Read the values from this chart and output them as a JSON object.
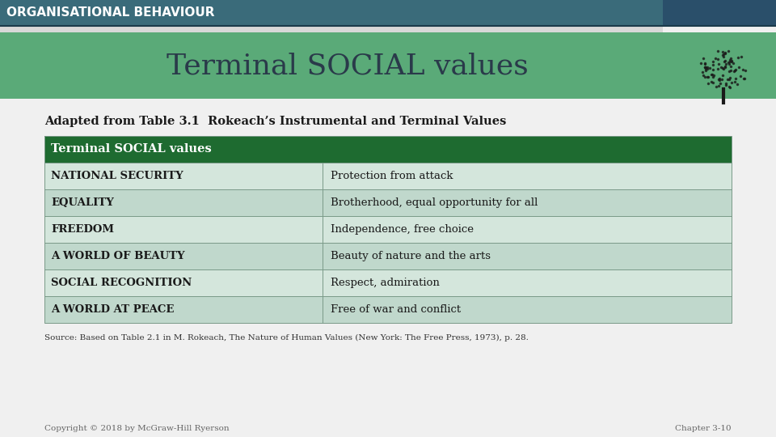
{
  "slide_title": "Terminal SOCIAL values",
  "header_text": "ORGANISATIONAL BEHAVIOUR",
  "subtitle": "Adapted from Table 3.1  Rokeach’s Instrumental and Terminal Values",
  "table_header": "Terminal SOCIAL values",
  "table_rows": [
    [
      "NATIONAL SECURITY",
      "Protection from attack"
    ],
    [
      "EQUALITY",
      "Brotherhood, equal opportunity for all"
    ],
    [
      "FREEDOM",
      "Independence, free choice"
    ],
    [
      "A WORLD OF BEAUTY",
      "Beauty of nature and the arts"
    ],
    [
      "SOCIAL RECOGNITION",
      "Respect, admiration"
    ],
    [
      "A WORLD AT PEACE",
      "Free of war and conflict"
    ]
  ],
  "source_text": "Source: Based on Table 2.1 in M. Rokeach, The Nature of Human Values (New York: The Free Press, 1973), p. 28.",
  "copyright_text": "Copyright © 2018 by McGraw-Hill Ryerson",
  "chapter_text": "Chapter 3-10",
  "bg_color": "#f0f0f0",
  "header_bg_color": "#3a6b7a",
  "header_stripe_color": "#2a4f6a",
  "header_text_color": "#ffffff",
  "title_bg_color": "#5aaa78",
  "title_text_color": "#2a3a4a",
  "white_gap_color": "#e8e8e8",
  "table_header_bg": "#1e6b30",
  "table_header_text": "#ffffff",
  "table_row_alt1_bg": "#d4e6dc",
  "table_row_alt2_bg": "#c0d8cc",
  "table_border_color": "#888888",
  "table_text_color": "#1a1a1a"
}
